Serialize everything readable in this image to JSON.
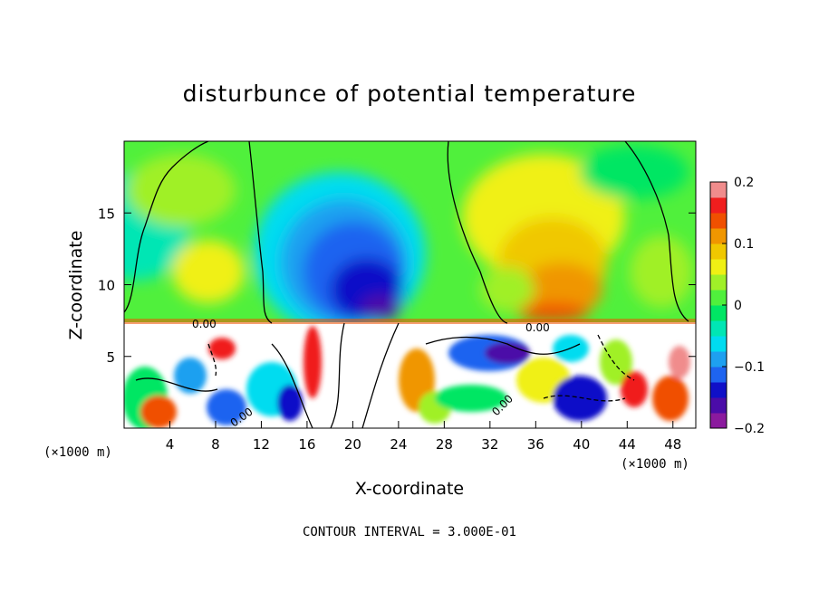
{
  "chart_data": {
    "type": "heatmap",
    "title": "disturbunce of potential temperature",
    "xlabel": "X-coordinate",
    "ylabel": "Z-coordinate",
    "x_unit": "(×1000 m)",
    "y_unit": "(×1000 m)",
    "xlim": [
      0,
      50
    ],
    "ylim": [
      0,
      20
    ],
    "x_ticks": [
      4,
      8,
      12,
      16,
      20,
      24,
      28,
      32,
      36,
      40,
      44,
      48
    ],
    "y_ticks": [
      5,
      10,
      15
    ],
    "colorbar": {
      "min": -0.2,
      "max": 0.2,
      "tick_values": [
        0.2,
        0.1,
        0,
        -0.1,
        -0.2
      ],
      "tick_labels": [
        "0.2",
        "0.1",
        "0",
        "−0.1",
        "−0.2"
      ],
      "colors": [
        "#8b1a9e",
        "#4b0ca8",
        "#1010c8",
        "#1e64f0",
        "#1ea0f0",
        "#00dcf0",
        "#00e6b4",
        "#00e664",
        "#50f03c",
        "#a0f028",
        "#f0f014",
        "#f0c800",
        "#f09600",
        "#f05000",
        "#f01e1e",
        "#f08c8c"
      ]
    },
    "contour_labels": [
      "0.00",
      "0.00",
      "0.00",
      "0.00"
    ],
    "contour_interval_text": "CONTOUR INTERVAL = 3.000E-01",
    "grid": false
  }
}
